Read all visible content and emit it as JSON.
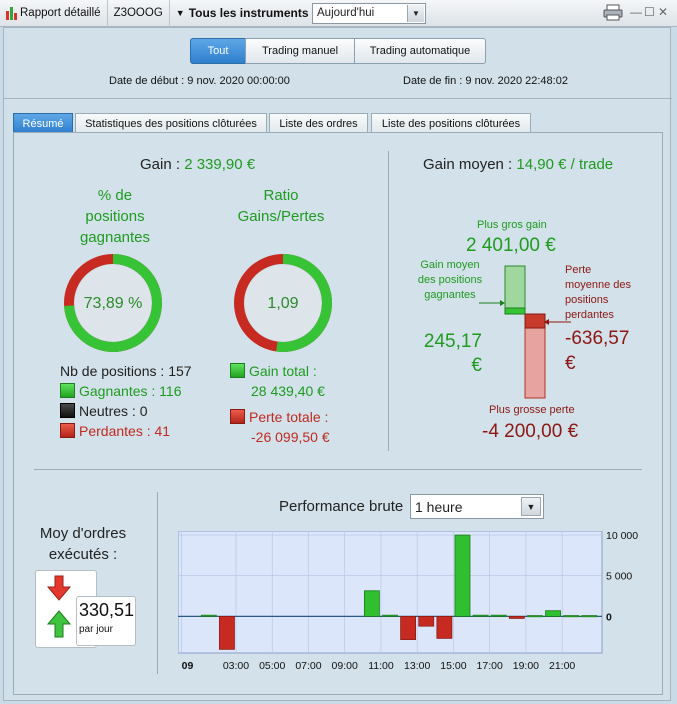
{
  "toolbar": {
    "report_label": "Rapport détaillé",
    "account_id": "Z3OOOG",
    "instruments_label": "Tous les instruments",
    "period_value": "Aujourd'hui"
  },
  "mode_buttons": [
    "Tout",
    "Trading manuel",
    "Trading automatique"
  ],
  "dates": {
    "start_label": "Date de début :",
    "start_value": "9 nov. 2020 00:00:00",
    "end_label": "Date de fin :",
    "end_value": "9 nov. 2020 22:48:02"
  },
  "tabs": [
    "Résumé",
    "Statistiques des positions clôturées",
    "Liste des ordres",
    "Liste des positions clôturées"
  ],
  "summary": {
    "gain_label": "Gain :",
    "gain_value": "2 339,90 €",
    "win_pct_title_1": "% de",
    "win_pct_title_2": "positions",
    "win_pct_title_3": "gagnantes",
    "win_pct_value": "73,89 %",
    "win_pct_fraction": 0.7389,
    "ratio_title_1": "Ratio",
    "ratio_title_2": "Gains/Pertes",
    "ratio_value": "1,09",
    "ratio_gain_fraction": 0.5214,
    "nb_positions_label": "Nb de positions :",
    "nb_positions_value": "157",
    "winning_label": "Gagnantes :",
    "winning_value": "116",
    "neutral_label": "Neutres :",
    "neutral_value": "0",
    "losing_label": "Perdantes :",
    "losing_value": "41",
    "total_gain_label": "Gain total :",
    "total_gain_value": "28 439,40 €",
    "total_loss_label": "Perte totale :",
    "total_loss_value": "-26 099,50 €"
  },
  "average": {
    "title_label": "Gain moyen :",
    "title_value": "14,90 € / trade",
    "biggest_gain_label": "Plus gros gain",
    "biggest_gain_value": "2 401,00 €",
    "avg_win_label_1": "Gain moyen",
    "avg_win_label_2": "des positions",
    "avg_win_label_3": "gagnantes",
    "avg_win_value_1": "245,17",
    "avg_win_value_2": "€",
    "avg_loss_label_1": "Perte",
    "avg_loss_label_2": "moyenne des",
    "avg_loss_label_3": "positions",
    "avg_loss_label_4": "perdantes",
    "avg_loss_value_1": "-636,57",
    "avg_loss_value_2": "€",
    "biggest_loss_label": "Plus grosse perte",
    "biggest_loss_value": "-4 200,00 €"
  },
  "orders": {
    "title_1": "Moy d'ordres",
    "title_2": "exécutés :",
    "value": "330,51",
    "unit": "par jour"
  },
  "performance": {
    "label": "Performance brute",
    "interval_value": "1 heure"
  },
  "chart_data": {
    "type": "bar",
    "x_tick_labels": [
      "09",
      "03:00",
      "05:00",
      "07:00",
      "09:00",
      "11:00",
      "13:00",
      "15:00",
      "17:00",
      "19:00",
      "21:00"
    ],
    "x_tick_hours": [
      0,
      3,
      5,
      7,
      9,
      11,
      13,
      15,
      17,
      19,
      21
    ],
    "y_tick_labels": [
      "10 000",
      "5 000",
      "0"
    ],
    "y_ticks": [
      10000,
      5000,
      0
    ],
    "ylim": [
      -4500,
      10500
    ],
    "xlim": [
      -0.2,
      23.2
    ],
    "hours": [
      1,
      2,
      10,
      11,
      12,
      13,
      14,
      15,
      16,
      17,
      18,
      19,
      20,
      21,
      22
    ],
    "values": [
      150,
      -4050,
      3150,
      150,
      -2850,
      -1200,
      -2700,
      10000,
      150,
      150,
      -250,
      100,
      700,
      100,
      100
    ],
    "colors": {
      "positive": "#2fbf2f",
      "negative": "#c72a20",
      "plot_background": "#dbe6fb",
      "grid": "#b4c3e3"
    }
  }
}
